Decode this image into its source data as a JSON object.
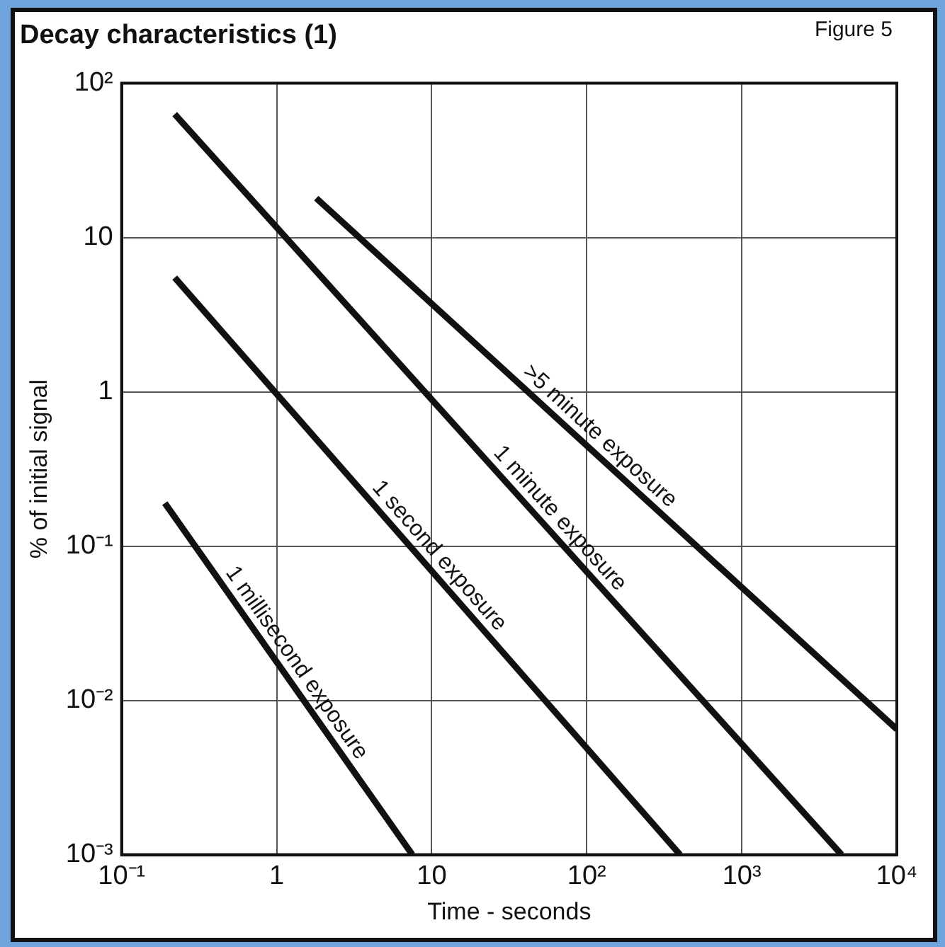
{
  "chart_data": {
    "type": "line",
    "title": "Decay characteristics (1)",
    "xlabel": "Time - seconds",
    "ylabel": "% of initial signal",
    "annotations": [
      "Figure 5"
    ],
    "log": "xy",
    "xlim": [
      0.1,
      10000
    ],
    "ylim": [
      0.001,
      100
    ],
    "xticks": [
      {
        "value": 0.1,
        "label": "10⁻¹"
      },
      1,
      10,
      {
        "value": 100,
        "label": "10²"
      },
      {
        "value": 1000,
        "label": "10³"
      },
      {
        "value": 10000,
        "label": "10⁴"
      }
    ],
    "yticks": [
      {
        "value": 0.001,
        "label": "10⁻³"
      },
      {
        "value": 0.01,
        "label": "10⁻²"
      },
      {
        "value": 0.1,
        "label": "10⁻¹"
      },
      1,
      10,
      {
        "value": 100,
        "label": "10²"
      }
    ],
    "grid": true,
    "legend": false,
    "marker": "none",
    "line_style": "solid",
    "series": [
      {
        "name": "1 millisecond exposure",
        "color": "#111111",
        "x": [
          0.19,
          7.5
        ],
        "values": [
          0.19,
          0.001
        ]
      },
      {
        "name": "1 second exposure",
        "color": "#111111",
        "x": [
          0.22,
          400
        ],
        "values": [
          5.5,
          0.001
        ]
      },
      {
        "name": "1 minute exposure",
        "color": "#111111",
        "x": [
          0.22,
          4400
        ],
        "values": [
          63,
          0.001
        ]
      },
      {
        "name": ">5 minute exposure",
        "color": "#111111",
        "x": [
          1.8,
          10000
        ],
        "values": [
          18,
          0.0065
        ]
      }
    ]
  }
}
